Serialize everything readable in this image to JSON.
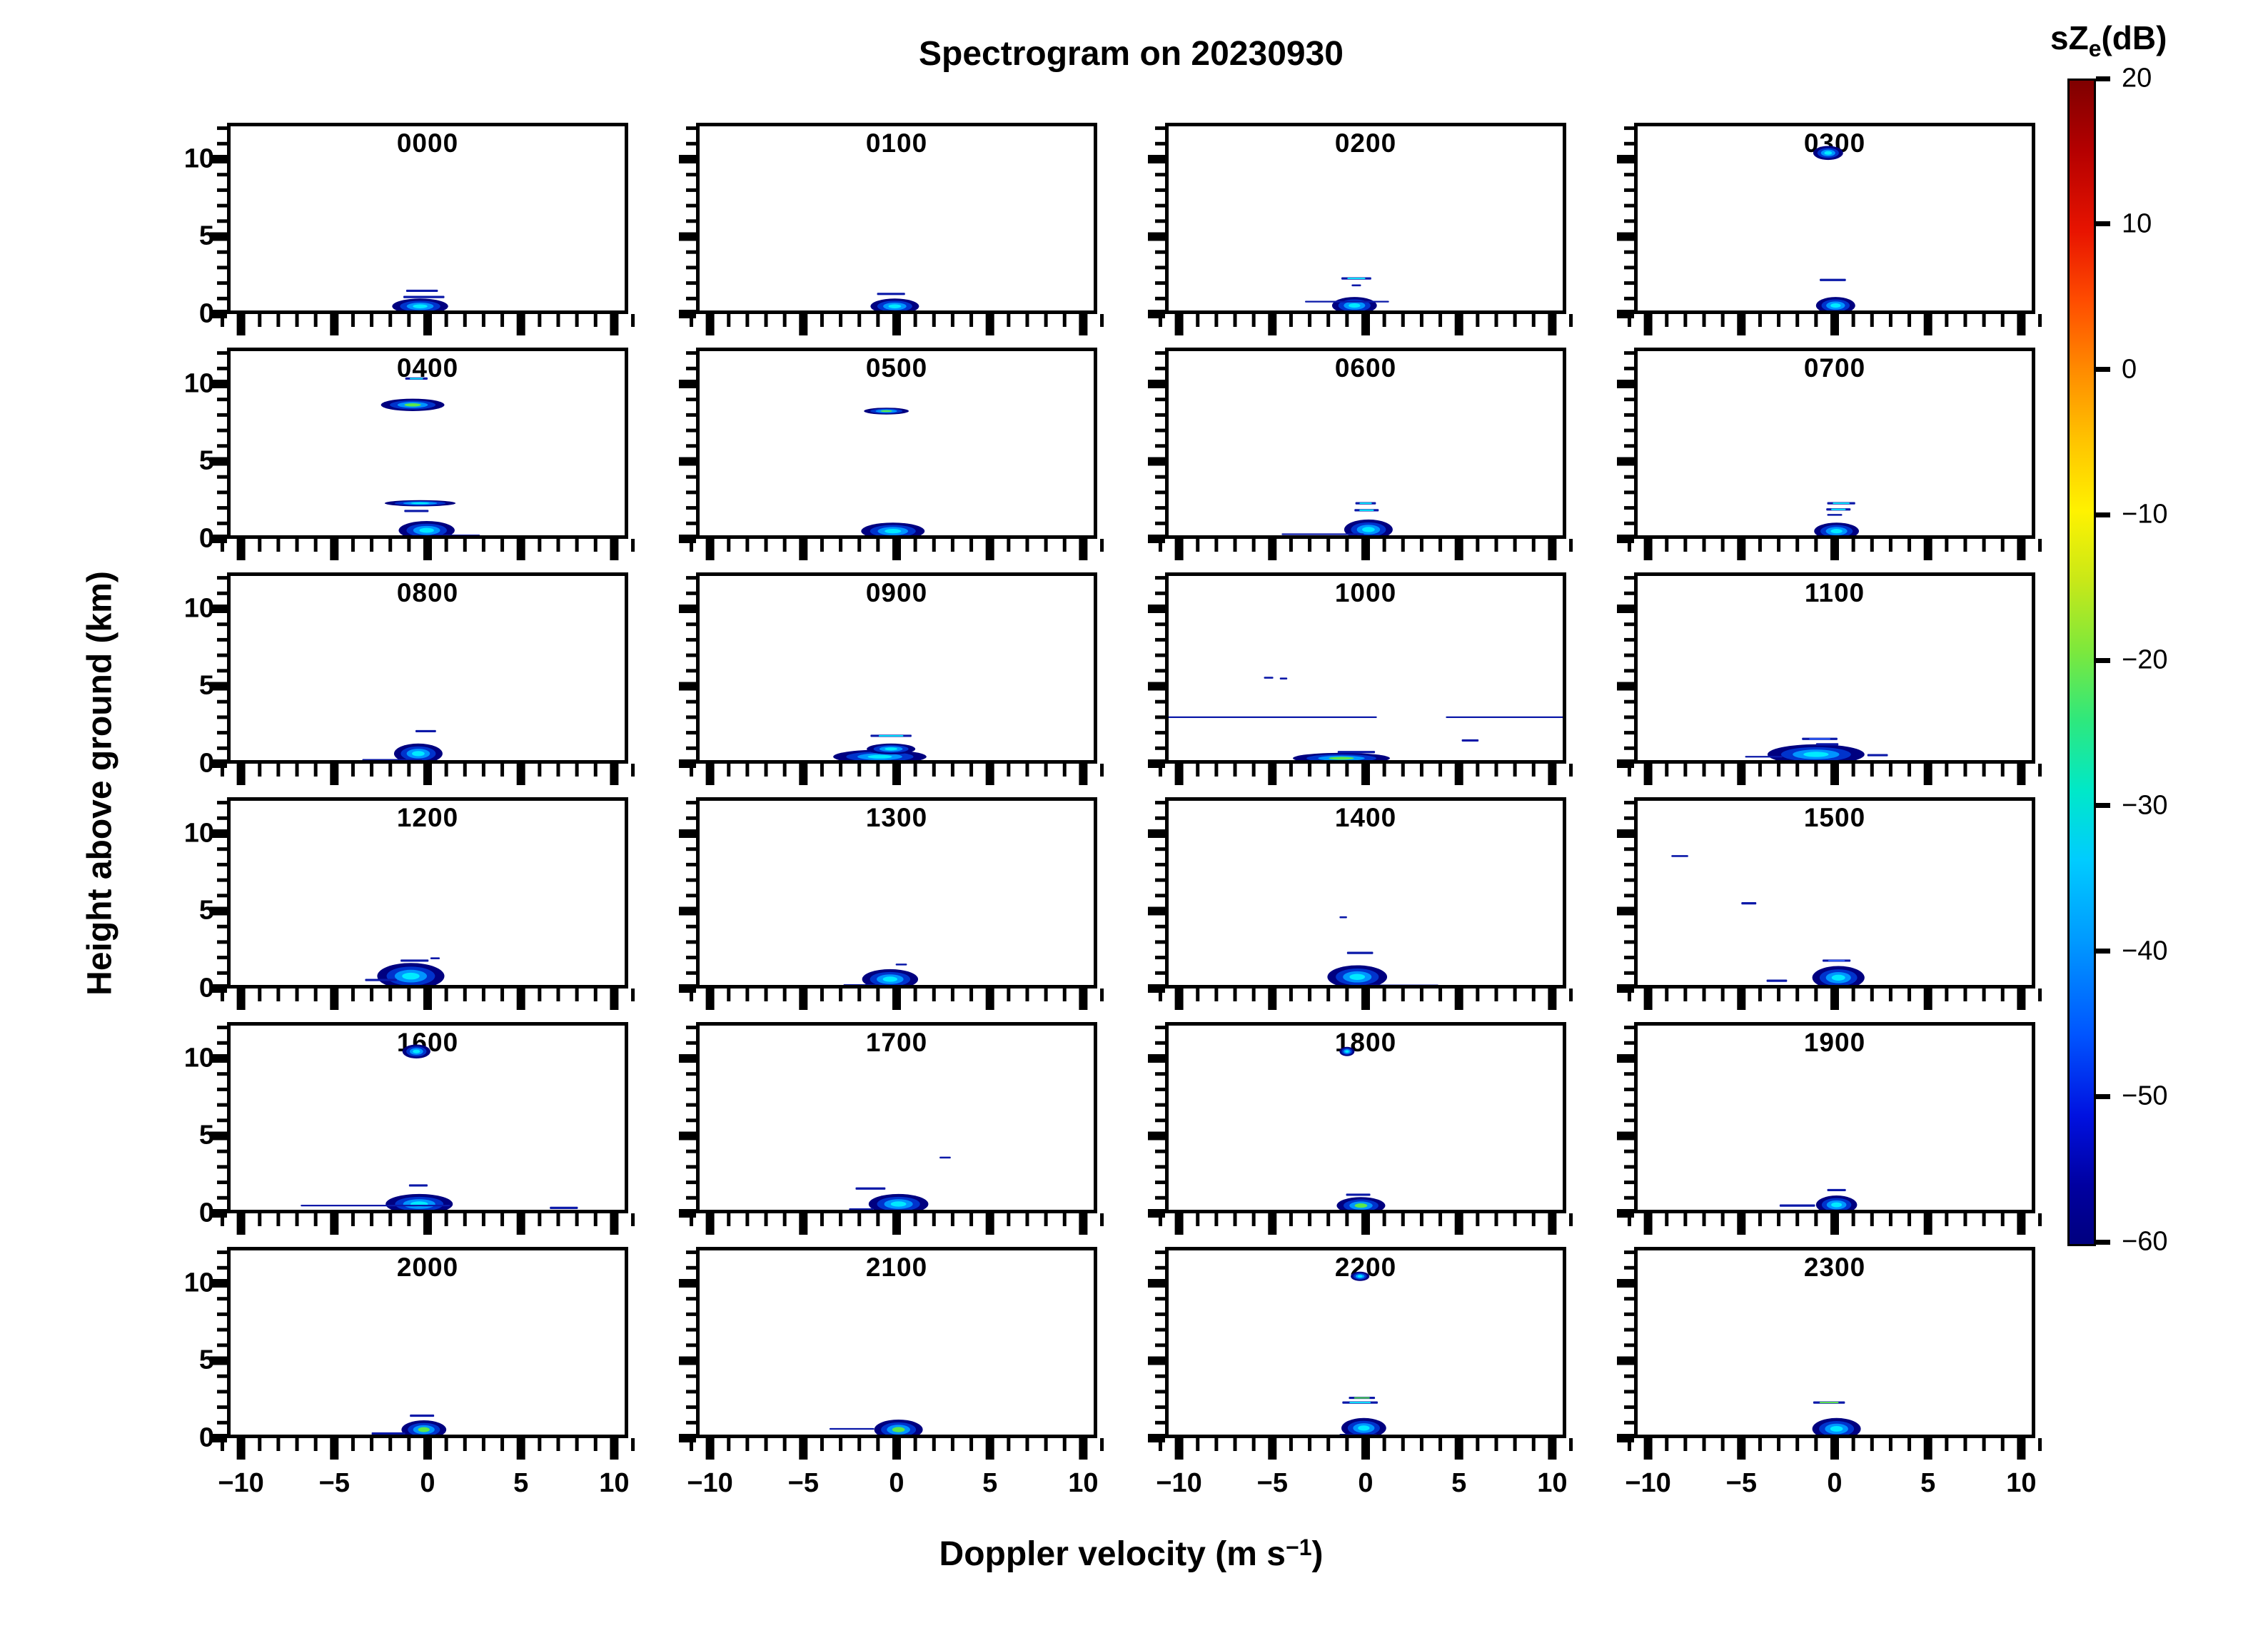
{
  "title": "Spectrogram on 20230930",
  "ylabel": "Height above ground (km)",
  "xlabel": {
    "pre": "Doppler velocity (m s",
    "sup": "−1",
    "post": ")"
  },
  "colorbar": {
    "title_pre": "sZ",
    "title_sub": "e",
    "title_post": "(dB)",
    "unit": "dB",
    "min": -60,
    "max": 20,
    "ticks": [
      20,
      10,
      0,
      -10,
      -20,
      -30,
      -40,
      -50,
      -60
    ],
    "colormap": "jet",
    "top_color": "#7f0000",
    "bottom_color": "#00007f"
  },
  "chart_data": {
    "type": "heatmap",
    "title": "Spectrogram on 20230930",
    "xlabel": "Doppler velocity (m s^-1)",
    "ylabel": "Height above ground (km)",
    "colorbar_label": "sZe(dB)",
    "colorbar_range": [
      -60,
      20
    ],
    "x_ticks": [
      -10,
      -5,
      0,
      5,
      10
    ],
    "y_ticks": [
      0,
      5,
      10
    ],
    "x_range": [
      -10.75,
      10.75
    ],
    "y_range": [
      0,
      12.35
    ],
    "legend_position": "right-colorbar",
    "grid": false,
    "note": "24 hourly Doppler-velocity/height radar spectrogram panels; echo power sZe in dB, mostly -60 to -30 dB (dark blue to cyan), concentrated near 0 m/s below 2 km",
    "panels": [
      {
        "label": "0000",
        "features": [
          {
            "kind": "blob",
            "x": -0.4,
            "y": 0.5,
            "rx": 1.5,
            "ry": 0.5,
            "core": "cyan"
          },
          {
            "kind": "dash",
            "x": -0.3,
            "y": 1.5,
            "w": 1.7
          },
          {
            "kind": "dash",
            "x": -0.2,
            "y": 1.1,
            "w": 2.2
          }
        ]
      },
      {
        "label": "0100",
        "features": [
          {
            "kind": "blob",
            "x": -0.1,
            "y": 0.5,
            "rx": 1.3,
            "ry": 0.5,
            "core": "cyan"
          },
          {
            "kind": "dash",
            "x": -0.3,
            "y": 1.3,
            "w": 1.5
          }
        ]
      },
      {
        "label": "0200",
        "features": [
          {
            "kind": "blob",
            "x": -0.6,
            "y": 0.55,
            "rx": 1.2,
            "ry": 0.55,
            "core": "cyan"
          },
          {
            "kind": "line",
            "x": -1.0,
            "y": 0.8,
            "w": 4.5
          },
          {
            "kind": "dash",
            "x": -0.5,
            "y": 2.3,
            "w": 1.6,
            "bright": "cyan"
          },
          {
            "kind": "dot",
            "x": -0.5,
            "y": 1.85,
            "w": 0.5
          }
        ]
      },
      {
        "label": "0300",
        "features": [
          {
            "kind": "blob",
            "x": 0.05,
            "y": 0.55,
            "rx": 1.05,
            "ry": 0.55,
            "core": "cyan"
          },
          {
            "kind": "dash",
            "x": -0.1,
            "y": 2.2,
            "w": 1.4
          },
          {
            "kind": "blob",
            "x": -0.35,
            "y": 10.4,
            "rx": 0.8,
            "ry": 0.45,
            "core": "cyan"
          }
        ]
      },
      {
        "label": "0400",
        "features": [
          {
            "kind": "blob",
            "x": -0.8,
            "y": 8.65,
            "rx": 1.7,
            "ry": 0.4,
            "core": "lime"
          },
          {
            "kind": "dash",
            "x": -0.6,
            "y": 10.35,
            "w": 1.2,
            "bright": "cyan"
          },
          {
            "kind": "blob",
            "x": -0.4,
            "y": 2.3,
            "rx": 1.9,
            "ry": 0.2,
            "core": "cyan"
          },
          {
            "kind": "dash",
            "x": -0.6,
            "y": 1.8,
            "w": 1.3
          },
          {
            "kind": "blob",
            "x": -0.05,
            "y": 0.55,
            "rx": 1.5,
            "ry": 0.6,
            "core": "cyan"
          },
          {
            "kind": "dash",
            "x": 1.5,
            "y": 0.2,
            "w": 2.6
          }
        ]
      },
      {
        "label": "0500",
        "features": [
          {
            "kind": "blob",
            "x": -0.55,
            "y": 8.25,
            "rx": 1.2,
            "ry": 0.22,
            "core": "lime"
          },
          {
            "kind": "blob",
            "x": -0.2,
            "y": 0.5,
            "rx": 1.7,
            "ry": 0.55,
            "core": "cyan"
          },
          {
            "kind": "dash",
            "x": -2.2,
            "y": 0.15,
            "w": 1.6
          }
        ]
      },
      {
        "label": "0600",
        "features": [
          {
            "kind": "blob",
            "x": 0.15,
            "y": 0.6,
            "rx": 1.3,
            "ry": 0.65,
            "core": "cyan"
          },
          {
            "kind": "line",
            "x": -2.3,
            "y": 0.3,
            "w": 4.4
          },
          {
            "kind": "dash",
            "x": 0.0,
            "y": 2.3,
            "w": 1.1,
            "bright": "cyan"
          },
          {
            "kind": "dash",
            "x": 0.05,
            "y": 1.85,
            "w": 1.3,
            "bright": "cyan"
          }
        ]
      },
      {
        "label": "0700",
        "features": [
          {
            "kind": "blob",
            "x": 0.1,
            "y": 0.5,
            "rx": 1.2,
            "ry": 0.55,
            "core": "cyan"
          },
          {
            "kind": "dash",
            "x": 0.35,
            "y": 2.3,
            "w": 1.5,
            "bright": "cyan"
          },
          {
            "kind": "dash",
            "x": 0.2,
            "y": 1.9,
            "w": 1.3,
            "bright": "cyan"
          },
          {
            "kind": "dot",
            "x": 0.0,
            "y": 1.55,
            "w": 0.8
          }
        ]
      },
      {
        "label": "0800",
        "features": [
          {
            "kind": "blob",
            "x": -0.5,
            "y": 0.65,
            "rx": 1.3,
            "ry": 0.65,
            "core": "cyan"
          },
          {
            "kind": "line",
            "x": -1.9,
            "y": 0.25,
            "w": 3.2
          },
          {
            "kind": "dash",
            "x": -0.1,
            "y": 2.1,
            "w": 1.1
          }
        ]
      },
      {
        "label": "0900",
        "features": [
          {
            "kind": "blob",
            "x": -0.9,
            "y": 0.45,
            "rx": 2.5,
            "ry": 0.45,
            "core": "cyan"
          },
          {
            "kind": "blob",
            "x": -0.3,
            "y": 0.95,
            "rx": 1.3,
            "ry": 0.35,
            "core": "cyan"
          },
          {
            "kind": "dash",
            "x": -0.3,
            "y": 1.8,
            "w": 2.2,
            "bright": "cyan"
          }
        ]
      },
      {
        "label": "1000",
        "features": [
          {
            "kind": "blob",
            "x": -1.3,
            "y": 0.35,
            "rx": 2.6,
            "ry": 0.35,
            "core": "lime"
          },
          {
            "kind": "dash",
            "x": -0.5,
            "y": 0.75,
            "w": 2.0
          },
          {
            "kind": "line",
            "x": -5.2,
            "y": 3.0,
            "w": 11.6
          },
          {
            "kind": "line",
            "x": 7.8,
            "y": 3.0,
            "w": 7.0
          },
          {
            "kind": "dot",
            "x": -5.2,
            "y": 5.55,
            "w": 0.5
          },
          {
            "kind": "dot",
            "x": -4.4,
            "y": 5.5,
            "w": 0.4
          },
          {
            "kind": "dash",
            "x": 5.6,
            "y": 1.5,
            "w": 0.9
          }
        ]
      },
      {
        "label": "1100",
        "features": [
          {
            "kind": "blob",
            "x": -1.0,
            "y": 0.6,
            "rx": 2.6,
            "ry": 0.65,
            "core": "cyan"
          },
          {
            "kind": "dash",
            "x": -0.8,
            "y": 1.6,
            "w": 1.9,
            "bright": "blue"
          },
          {
            "kind": "dash",
            "x": -0.4,
            "y": 1.25,
            "w": 1.2
          },
          {
            "kind": "line",
            "x": -3.8,
            "y": 0.45,
            "w": 2.0
          },
          {
            "kind": "dash",
            "x": 2.3,
            "y": 0.55,
            "w": 1.1
          }
        ]
      },
      {
        "label": "1200",
        "features": [
          {
            "kind": "blob",
            "x": -0.9,
            "y": 0.8,
            "rx": 1.8,
            "ry": 0.85,
            "core": "cyan"
          },
          {
            "kind": "dash",
            "x": -2.5,
            "y": 0.55,
            "w": 1.7
          },
          {
            "kind": "dash",
            "x": -0.7,
            "y": 1.8,
            "w": 1.5
          },
          {
            "kind": "dot",
            "x": 0.4,
            "y": 1.95,
            "w": 0.5
          }
        ]
      },
      {
        "label": "1300",
        "features": [
          {
            "kind": "blob",
            "x": -0.35,
            "y": 0.6,
            "rx": 1.5,
            "ry": 0.65,
            "core": "cyan"
          },
          {
            "kind": "dash",
            "x": -1.9,
            "y": 0.2,
            "w": 1.9
          },
          {
            "kind": "dot",
            "x": 0.25,
            "y": 1.55,
            "w": 0.6
          }
        ]
      },
      {
        "label": "1400",
        "features": [
          {
            "kind": "blob",
            "x": -0.45,
            "y": 0.75,
            "rx": 1.6,
            "ry": 0.75,
            "core": "cyan"
          },
          {
            "kind": "line",
            "x": 1.8,
            "y": 0.2,
            "w": 4.2
          },
          {
            "kind": "dash",
            "x": -0.3,
            "y": 2.3,
            "w": 1.4
          },
          {
            "kind": "dot",
            "x": -1.2,
            "y": 4.6,
            "w": 0.4
          },
          {
            "kind": "dash",
            "x": -3.3,
            "y": 0.15,
            "w": 0.8
          }
        ]
      },
      {
        "label": "1500",
        "features": [
          {
            "kind": "blob",
            "x": 0.2,
            "y": 0.7,
            "rx": 1.4,
            "ry": 0.75,
            "core": "cyan"
          },
          {
            "kind": "dash",
            "x": 0.1,
            "y": 1.8,
            "w": 1.5,
            "bright": "blue"
          },
          {
            "kind": "dot",
            "x": -8.3,
            "y": 8.55,
            "w": 0.9
          },
          {
            "kind": "dash",
            "x": -4.6,
            "y": 5.5,
            "w": 0.8
          },
          {
            "kind": "dash",
            "x": -3.1,
            "y": 0.5,
            "w": 1.1
          }
        ]
      },
      {
        "label": "1600",
        "features": [
          {
            "kind": "blob",
            "x": -0.45,
            "y": 0.6,
            "rx": 1.8,
            "ry": 0.65,
            "core": "cyan"
          },
          {
            "kind": "line",
            "x": -2.8,
            "y": 0.5,
            "w": 8.0
          },
          {
            "kind": "dash",
            "x": 7.3,
            "y": 0.35,
            "w": 1.5
          },
          {
            "kind": "dash",
            "x": -0.5,
            "y": 1.8,
            "w": 1.0
          },
          {
            "kind": "blob",
            "x": -0.6,
            "y": 10.45,
            "rx": 0.75,
            "ry": 0.45,
            "core": "cyan"
          }
        ]
      },
      {
        "label": "1700",
        "features": [
          {
            "kind": "blob",
            "x": 0.1,
            "y": 0.6,
            "rx": 1.6,
            "ry": 0.65,
            "core": "cyan"
          },
          {
            "kind": "dash",
            "x": -1.4,
            "y": 1.6,
            "w": 1.6
          },
          {
            "kind": "dash",
            "x": -1.9,
            "y": 0.25,
            "w": 1.3
          },
          {
            "kind": "dot",
            "x": 2.6,
            "y": 3.6,
            "w": 0.6
          }
        ]
      },
      {
        "label": "1800",
        "features": [
          {
            "kind": "blob",
            "x": -0.25,
            "y": 0.5,
            "rx": 1.3,
            "ry": 0.55,
            "core": "lime"
          },
          {
            "kind": "dash",
            "x": -0.4,
            "y": 1.2,
            "w": 1.3
          },
          {
            "kind": "blob",
            "x": -1.0,
            "y": 10.45,
            "rx": 0.4,
            "ry": 0.3,
            "core": "cyan"
          }
        ]
      },
      {
        "label": "1900",
        "features": [
          {
            "kind": "blob",
            "x": 0.1,
            "y": 0.55,
            "rx": 1.1,
            "ry": 0.6,
            "core": "cyan"
          },
          {
            "kind": "dash",
            "x": -2.0,
            "y": 0.5,
            "w": 1.9
          },
          {
            "kind": "dash",
            "x": 0.1,
            "y": 1.5,
            "w": 1.0
          }
        ]
      },
      {
        "label": "2000",
        "features": [
          {
            "kind": "blob",
            "x": -0.2,
            "y": 0.55,
            "rx": 1.2,
            "ry": 0.6,
            "core": "lime"
          },
          {
            "kind": "dash",
            "x": -2.1,
            "y": 0.3,
            "w": 1.8
          },
          {
            "kind": "dash",
            "x": -0.3,
            "y": 1.45,
            "w": 1.3
          }
        ]
      },
      {
        "label": "2100",
        "features": [
          {
            "kind": "blob",
            "x": 0.1,
            "y": 0.55,
            "rx": 1.3,
            "ry": 0.65,
            "core": "lime"
          },
          {
            "kind": "line",
            "x": -2.4,
            "y": 0.6,
            "w": 2.4
          }
        ]
      },
      {
        "label": "2200",
        "features": [
          {
            "kind": "blob",
            "x": -0.1,
            "y": 0.65,
            "rx": 1.2,
            "ry": 0.65,
            "core": "cyan"
          },
          {
            "kind": "dash",
            "x": -0.4,
            "y": 0.2,
            "w": 2.0
          },
          {
            "kind": "dash",
            "x": -0.2,
            "y": 2.6,
            "w": 1.4,
            "bright": "lime"
          },
          {
            "kind": "dash",
            "x": -0.3,
            "y": 2.3,
            "w": 1.9,
            "bright": "cyan"
          },
          {
            "kind": "blob",
            "x": -0.3,
            "y": 10.45,
            "rx": 0.5,
            "ry": 0.3,
            "core": "cyan"
          }
        ]
      },
      {
        "label": "2300",
        "features": [
          {
            "kind": "blob",
            "x": 0.1,
            "y": 0.6,
            "rx": 1.3,
            "ry": 0.7,
            "core": "cyan"
          },
          {
            "kind": "dash",
            "x": -0.3,
            "y": 2.3,
            "w": 1.7,
            "bright": "lime"
          }
        ]
      }
    ]
  }
}
